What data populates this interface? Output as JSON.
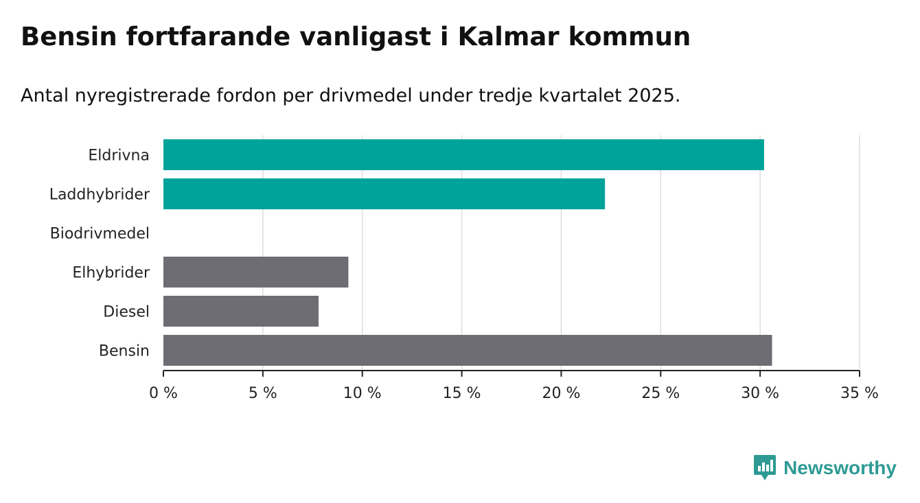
{
  "title": "Bensin fortfarande vanligast i Kalmar kommun",
  "subtitle": "Antal nyregistrerade fordon per drivmedel under tredje kvartalet 2025.",
  "brand": {
    "name": "Newsworthy",
    "icon": "newsworthy-chart-icon",
    "color": "#2f9a94"
  },
  "colors": {
    "highlight": "#00a39a",
    "default": "#6e6d73",
    "grid": "#dddddd",
    "axis": "#222222"
  },
  "chart_data": {
    "type": "bar",
    "orientation": "horizontal",
    "title": "Bensin fortfarande vanligast i Kalmar kommun",
    "subtitle": "Antal nyregistrerade fordon per drivmedel under tredje kvartalet 2025.",
    "categories": [
      "Eldrivna",
      "Laddhybrider",
      "Biodrivmedel",
      "Elhybrider",
      "Diesel",
      "Bensin"
    ],
    "values": [
      30.2,
      22.2,
      0,
      9.3,
      7.8,
      30.6
    ],
    "highlight": [
      true,
      true,
      false,
      false,
      false,
      false
    ],
    "unit": "%",
    "xlim": [
      0,
      35
    ],
    "xticks": [
      0,
      5,
      10,
      15,
      20,
      25,
      30,
      35
    ],
    "xtick_labels": [
      "0 %",
      "5 %",
      "10 %",
      "15 %",
      "20 %",
      "25 %",
      "30 %",
      "35 %"
    ],
    "grid": true,
    "xlabel": "",
    "ylabel": ""
  }
}
